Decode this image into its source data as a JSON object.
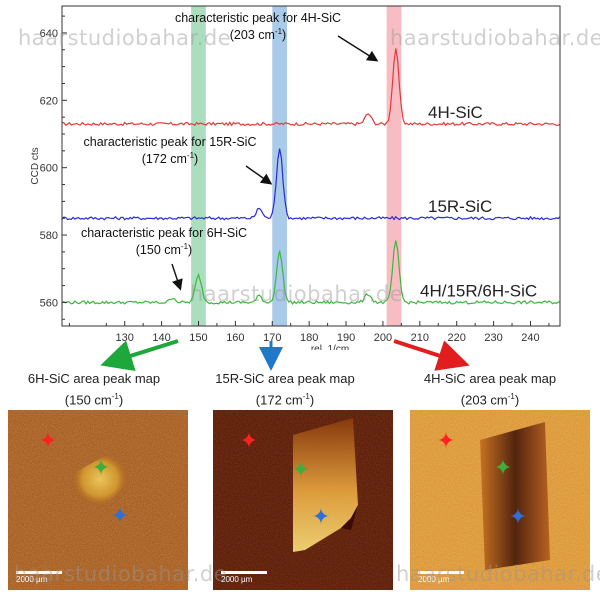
{
  "chart_data": {
    "type": "line",
    "ylabel": "CCD cts",
    "xlabel": "rel. 1/cm",
    "xlim": [
      113,
      248
    ],
    "ylim": [
      553,
      648
    ],
    "xticks": [
      130,
      140,
      150,
      160,
      170,
      180,
      190,
      200,
      210,
      220,
      230,
      240
    ],
    "yticks": [
      560,
      580,
      600,
      620,
      640
    ],
    "grid": false,
    "highlight_bands": [
      {
        "center": 150,
        "width": 4,
        "color": "#8fd3a8"
      },
      {
        "center": 172,
        "width": 4,
        "color": "#8cb8e0"
      },
      {
        "center": 203,
        "width": 4,
        "color": "#f4a7ad"
      }
    ],
    "series": [
      {
        "name": "4H-SiC",
        "color": "#e23a3a",
        "baseline": 613,
        "peaks": [
          {
            "x": 196,
            "h": 3,
            "w": 1.2
          },
          {
            "x": 203.5,
            "h": 22,
            "w": 1.2
          }
        ]
      },
      {
        "name": "15R-SiC",
        "color": "#2a2ad6",
        "baseline": 585,
        "peaks": [
          {
            "x": 166.5,
            "h": 3,
            "w": 1.1
          },
          {
            "x": 172,
            "h": 21,
            "w": 1.2
          }
        ]
      },
      {
        "name": "4H/15R/6H-SiC",
        "color": "#3cb83c",
        "baseline": 560,
        "peaks": [
          {
            "x": 143,
            "h": 1.5,
            "w": 1
          },
          {
            "x": 150,
            "h": 8,
            "w": 1.2
          },
          {
            "x": 166.5,
            "h": 2,
            "w": 1
          },
          {
            "x": 172,
            "h": 15,
            "w": 1.2
          },
          {
            "x": 196,
            "h": 2.5,
            "w": 1.2
          },
          {
            "x": 203.5,
            "h": 18,
            "w": 1.2
          }
        ]
      }
    ],
    "annotations": [
      {
        "line1": "characteristic peak for 4H-SiC",
        "line2_pre": "(203 cm",
        "line2_post": ")",
        "sup": "-1"
      },
      {
        "line1": "characteristic peak for 15R-SiC",
        "line2_pre": "(172 cm",
        "line2_post": ")",
        "sup": "-1"
      },
      {
        "line1": "characteristic peak for 6H-SiC",
        "line2_pre": "(150 cm",
        "line2_post": ")",
        "sup": "-1"
      }
    ]
  },
  "maps": [
    {
      "title": "6H-SiC area peak map",
      "sub_pre": "(150 cm",
      "sub_post": ")",
      "sup": "-1",
      "scale": "2000 µm",
      "arrow_color": "#1ea83c"
    },
    {
      "title": "15R-SiC area peak map",
      "sub_pre": "(172 cm",
      "sub_post": ")",
      "sup": "-1",
      "scale": "2000 µm",
      "arrow_color": "#1f78c8"
    },
    {
      "title": "4H-SiC area peak map",
      "sub_pre": "(203 cm",
      "sub_post": ")",
      "sup": "-1",
      "scale": "2000 µm",
      "arrow_color": "#e01e1e"
    }
  ],
  "markers": {
    "red": "#ff2020",
    "green": "#3fae3f",
    "blue": "#2f6fd6",
    "glyph": "✦"
  },
  "watermark": "haarstudiobahar.de"
}
